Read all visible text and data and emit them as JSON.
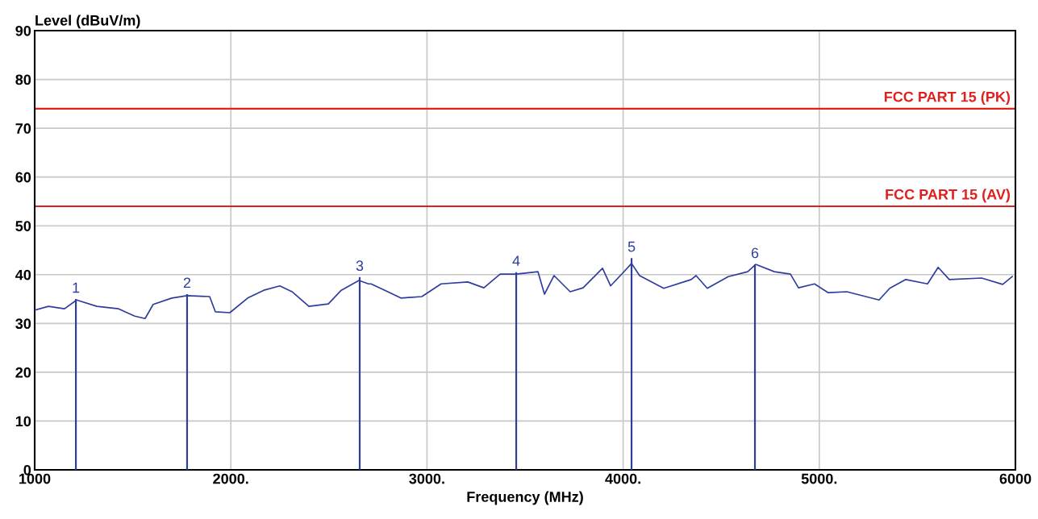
{
  "chart_data": {
    "type": "line",
    "xlabel": "Frequency (MHz)",
    "ylabel": "Level (dBuV/m)",
    "xlim": [
      1000,
      6000
    ],
    "xticks": [
      1000,
      {
        "value": 2000,
        "label": "2000."
      },
      {
        "value": 3000,
        "label": "3000."
      },
      {
        "value": 4000,
        "label": "4000."
      },
      {
        "value": 5000,
        "label": "5000."
      },
      6000
    ],
    "ylim": [
      0,
      90
    ],
    "yticks": [
      0,
      10,
      20,
      30,
      40,
      50,
      60,
      70,
      80,
      90
    ],
    "grid": true,
    "legend": false,
    "series": [
      {
        "color": "#2e3d9e",
        "x": [
          1000,
          1070,
          1152,
          1214,
          1317,
          1428,
          1510,
          1563,
          1604,
          1699,
          1777,
          1892,
          1921,
          1995,
          2086,
          2168,
          2250,
          2312,
          2398,
          2497,
          2563,
          2653,
          2702,
          2715,
          2785,
          2867,
          2974,
          3072,
          3208,
          3290,
          3373,
          3455,
          3566,
          3599,
          3648,
          3730,
          3796,
          3895,
          3936,
          4002,
          4043,
          4084,
          4207,
          4347,
          4372,
          4429,
          4536,
          4635,
          4676,
          4771,
          4853,
          4894,
          4976,
          5046,
          5141,
          5305,
          5359,
          5441,
          5552,
          5606,
          5663,
          5828,
          5935,
          5984
        ],
        "values": [
          32.7,
          33.5,
          33.0,
          34.8,
          33.5,
          33.0,
          31.5,
          31.0,
          33.9,
          35.2,
          35.7,
          35.5,
          32.4,
          32.2,
          35.2,
          36.8,
          37.7,
          36.5,
          33.5,
          34.0,
          36.8,
          38.8,
          38.1,
          38.1,
          36.8,
          35.2,
          35.5,
          38.1,
          38.5,
          37.3,
          40.1,
          40.1,
          40.6,
          36.0,
          39.8,
          36.5,
          37.3,
          41.3,
          37.7,
          40.5,
          42.3,
          39.8,
          37.2,
          39.0,
          39.8,
          37.2,
          39.6,
          40.6,
          42.1,
          40.6,
          40.1,
          37.3,
          38.1,
          36.3,
          36.5,
          34.8,
          37.2,
          39.0,
          38.1,
          41.5,
          39.0,
          39.3,
          38.0,
          39.6
        ]
      },
      {
        "type": "bar",
        "color": "#2e3d9e",
        "x": [
          1210,
          1777,
          2657,
          3455,
          4043,
          4672
        ],
        "values": [
          35.0,
          36.0,
          39.5,
          40.5,
          43.4,
          42.1
        ]
      }
    ],
    "annotations": [
      {
        "text": "1",
        "x": 1210,
        "y": 35.0
      },
      {
        "text": "2",
        "x": 1777,
        "y": 36.0
      },
      {
        "text": "3",
        "x": 2657,
        "y": 39.5
      },
      {
        "text": "4",
        "x": 3455,
        "y": 40.5
      },
      {
        "text": "5",
        "x": 4043,
        "y": 43.4
      },
      {
        "text": "6",
        "x": 4672,
        "y": 42.1
      }
    ],
    "ref_lines": [
      {
        "axis": "y",
        "value": 74,
        "label": "FCC PART 15 (PK)",
        "color": "#e0201c"
      },
      {
        "axis": "y",
        "value": 54,
        "label": "FCC PART 15 (AV)",
        "color": "#e0201c"
      }
    ]
  }
}
